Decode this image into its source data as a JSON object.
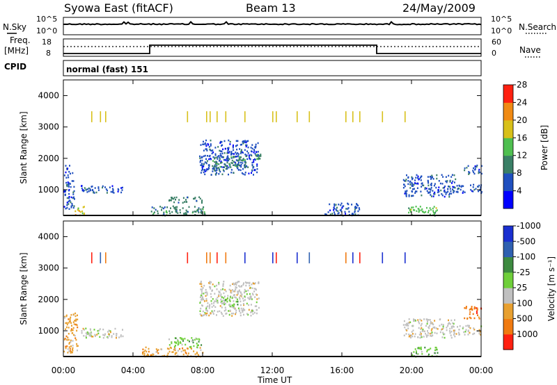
{
  "header": {
    "station": "Syowa East (fitACF)",
    "beam": "Beam 13",
    "date": "24/May/2009"
  },
  "panels": {
    "nsky": {
      "left_label": "N.Sky",
      "right_label": "N.Search",
      "left_ticks": [
        "10^5",
        "10^0"
      ],
      "right_ticks": [
        "10^5",
        "10^0"
      ]
    },
    "freq": {
      "left_label_1": "Freq.",
      "left_label_2": "[MHz]",
      "right_label": "Nave",
      "left_ticks": [
        "18",
        "8"
      ],
      "right_ticks": [
        "60",
        "0"
      ]
    },
    "cpid": {
      "label": "CPID",
      "value": "normal (fast) 151"
    }
  },
  "chart_data": [
    {
      "type": "heatmap",
      "name": "power",
      "ylabel": "Slant Range [km]",
      "xlabel": "",
      "xlim": [
        "00:00",
        "24:00"
      ],
      "ylim": [
        180,
        4500
      ],
      "x_ticks": [
        "00:00",
        "04:00",
        "08:00",
        "12:00",
        "16:00",
        "20:00",
        "00:00"
      ],
      "y_ticks": [
        1000,
        2000,
        3000,
        4000
      ],
      "colorbar": {
        "label": "Power [dB]",
        "ticks": [
          "4",
          "8",
          "12",
          "16",
          "20",
          "24",
          "28"
        ],
        "colors": [
          "#0000ff",
          "#1f4fbf",
          "#3a7f66",
          "#4fbf50",
          "#d8c01a",
          "#f08a14",
          "#ff2010"
        ]
      },
      "regions": [
        {
          "t": [
            0.0,
            0.6
          ],
          "r": [
            400,
            1800
          ],
          "level": 1
        },
        {
          "t": [
            0.6,
            1.2
          ],
          "r": [
            200,
            500
          ],
          "level": 4
        },
        {
          "t": [
            1.0,
            3.5
          ],
          "r": [
            900,
            1150
          ],
          "level": 1
        },
        {
          "t": [
            5.0,
            8.2
          ],
          "r": [
            200,
            500
          ],
          "level": 2
        },
        {
          "t": [
            6.0,
            8.0
          ],
          "r": [
            600,
            800
          ],
          "level": 2
        },
        {
          "t": [
            7.8,
            11.2
          ],
          "r": [
            1500,
            2600
          ],
          "level": 1
        },
        {
          "t": [
            8.5,
            10.5
          ],
          "r": [
            1700,
            2100
          ],
          "level": 2
        },
        {
          "t": [
            11.0,
            11.3
          ],
          "r": [
            2000,
            2200
          ],
          "level": 2
        },
        {
          "t": [
            15.0,
            17.0
          ],
          "r": [
            200,
            600
          ],
          "level": 1
        },
        {
          "t": [
            19.5,
            22.5
          ],
          "r": [
            800,
            1500
          ],
          "level": 1
        },
        {
          "t": [
            19.8,
            21.5
          ],
          "r": [
            200,
            500
          ],
          "level": 3
        },
        {
          "t": [
            22.5,
            24.0
          ],
          "r": [
            900,
            1200
          ],
          "level": 1
        },
        {
          "t": [
            23.0,
            24.0
          ],
          "r": [
            1500,
            1800
          ],
          "level": 1
        }
      ]
    },
    {
      "type": "heatmap",
      "name": "velocity",
      "ylabel": "Slant Range [km]",
      "xlabel": "Time UT",
      "xlim": [
        "00:00",
        "24:00"
      ],
      "ylim": [
        180,
        4500
      ],
      "x_ticks": [
        "00:00",
        "04:00",
        "08:00",
        "12:00",
        "16:00",
        "20:00",
        "00:00"
      ],
      "y_ticks": [
        1000,
        2000,
        3000,
        4000
      ],
      "colorbar": {
        "label": "Velocity [m s⁻¹]",
        "ticks": [
          "1000",
          "500",
          "100",
          "25",
          "-25",
          "-100",
          "-500",
          "-1000"
        ],
        "colors": [
          "#1a2fd0",
          "#2f60b0",
          "#3d8a40",
          "#6fcf3a",
          "#c0c0c0",
          "#e8a030",
          "#f07a10",
          "#ff2010"
        ]
      },
      "regions": [
        {
          "t": [
            0.0,
            0.8
          ],
          "r": [
            300,
            1600
          ],
          "level": 5
        },
        {
          "t": [
            1.0,
            3.5
          ],
          "r": [
            800,
            1100
          ],
          "level": 4
        },
        {
          "t": [
            4.5,
            8.0
          ],
          "r": [
            200,
            500
          ],
          "level": 5
        },
        {
          "t": [
            6.0,
            8.0
          ],
          "r": [
            500,
            800
          ],
          "level": 3
        },
        {
          "t": [
            7.8,
            11.2
          ],
          "r": [
            1500,
            2600
          ],
          "level": 4
        },
        {
          "t": [
            9.0,
            10.0
          ],
          "r": [
            1800,
            2100
          ],
          "level": 3
        },
        {
          "t": [
            19.5,
            22.5
          ],
          "r": [
            800,
            1400
          ],
          "level": 4
        },
        {
          "t": [
            20.0,
            21.5
          ],
          "r": [
            200,
            500
          ],
          "level": 3
        },
        {
          "t": [
            23.0,
            24.0
          ],
          "r": [
            1400,
            1800
          ],
          "level": 6
        },
        {
          "t": [
            22.5,
            24.0
          ],
          "r": [
            900,
            1200
          ],
          "level": 4
        }
      ]
    }
  ]
}
